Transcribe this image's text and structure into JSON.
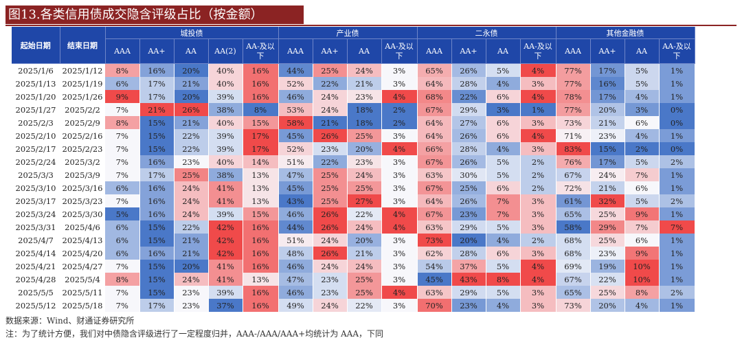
{
  "title": "图13.各类信用债成交隐含评级占比（按金额）",
  "headers": {
    "start_date": "起始日期",
    "end_date": "结束日期",
    "groups": [
      {
        "name": "城投债",
        "ratings": [
          "AAA",
          "AA+",
          "AA",
          "AA(2)",
          "AA-及以下"
        ]
      },
      {
        "name": "产业债",
        "ratings": [
          "AAA",
          "AA+",
          "AA",
          "AA-及以下"
        ]
      },
      {
        "name": "二永债",
        "ratings": [
          "AAA",
          "AA+",
          "AA",
          "AA-及以下"
        ]
      },
      {
        "name": "其他金融债",
        "ratings": [
          "AAA",
          "AA+",
          "AA",
          "AA-及以下"
        ]
      }
    ]
  },
  "rows": [
    {
      "start": "2025/1/6",
      "end": "2025/1/12",
      "values": [
        "8%",
        "16%",
        "20%",
        "40%",
        "16%",
        "44%",
        "25%",
        "24%",
        "3%",
        "65%",
        "26%",
        "5%",
        "4%",
        "77%",
        "17%",
        "5%",
        "1%"
      ]
    },
    {
      "start": "2025/1/13",
      "end": "2025/1/19",
      "values": [
        "6%",
        "17%",
        "21%",
        "40%",
        "16%",
        "52%",
        "22%",
        "21%",
        "3%",
        "64%",
        "28%",
        "4%",
        "3%",
        "77%",
        "16%",
        "5%",
        "1%"
      ]
    },
    {
      "start": "2025/1/20",
      "end": "2025/1/26",
      "values": [
        "9%",
        "17%",
        "20%",
        "39%",
        "16%",
        "46%",
        "24%",
        "23%",
        "4%",
        "68%",
        "22%",
        "6%",
        "4%",
        "78%",
        "17%",
        "4%",
        "1%"
      ]
    },
    {
      "start": "2025/1/27",
      "end": "2025/2/2",
      "values": [
        "7%",
        "21%",
        "26%",
        "38%",
        "8%",
        "53%",
        "24%",
        "18%",
        "2%",
        "67%",
        "29%",
        "3%",
        "1%",
        "77%",
        "20%",
        "3%",
        "0%"
      ]
    },
    {
      "start": "2025/2/3",
      "end": "2025/2/9",
      "values": [
        "8%",
        "15%",
        "21%",
        "40%",
        "15%",
        "58%",
        "21%",
        "18%",
        "2%",
        "64%",
        "27%",
        "6%",
        "3%",
        "73%",
        "21%",
        "6%",
        "0%"
      ]
    },
    {
      "start": "2025/2/10",
      "end": "2025/2/16",
      "values": [
        "7%",
        "15%",
        "22%",
        "39%",
        "17%",
        "45%",
        "26%",
        "25%",
        "3%",
        "64%",
        "26%",
        "6%",
        "4%",
        "71%",
        "23%",
        "4%",
        "1%"
      ]
    },
    {
      "start": "2025/2/17",
      "end": "2025/2/23",
      "values": [
        "7%",
        "15%",
        "22%",
        "39%",
        "17%",
        "52%",
        "23%",
        "20%",
        "4%",
        "66%",
        "28%",
        "4%",
        "3%",
        "83%",
        "15%",
        "2%",
        "0%"
      ]
    },
    {
      "start": "2025/2/24",
      "end": "2025/3/2",
      "values": [
        "7%",
        "16%",
        "23%",
        "40%",
        "14%",
        "51%",
        "22%",
        "23%",
        "3%",
        "67%",
        "26%",
        "5%",
        "2%",
        "76%",
        "17%",
        "5%",
        "2%"
      ]
    },
    {
      "start": "2025/3/3",
      "end": "2025/3/9",
      "values": [
        "7%",
        "17%",
        "25%",
        "38%",
        "13%",
        "47%",
        "25%",
        "24%",
        "3%",
        "63%",
        "30%",
        "5%",
        "2%",
        "67%",
        "24%",
        "7%",
        "1%"
      ]
    },
    {
      "start": "2025/3/10",
      "end": "2025/3/16",
      "values": [
        "6%",
        "16%",
        "24%",
        "41%",
        "13%",
        "45%",
        "25%",
        "25%",
        "3%",
        "67%",
        "25%",
        "6%",
        "2%",
        "72%",
        "21%",
        "6%",
        "1%"
      ]
    },
    {
      "start": "2025/3/17",
      "end": "2025/3/23",
      "values": [
        "7%",
        "16%",
        "24%",
        "41%",
        "13%",
        "43%",
        "25%",
        "27%",
        "3%",
        "64%",
        "26%",
        "7%",
        "3%",
        "61%",
        "32%",
        "5%",
        "2%"
      ]
    },
    {
      "start": "2025/3/24",
      "end": "2025/3/30",
      "values": [
        "5%",
        "16%",
        "24%",
        "39%",
        "15%",
        "46%",
        "26%",
        "22%",
        "4%",
        "67%",
        "23%",
        "7%",
        "3%",
        "65%",
        "25%",
        "9%",
        "1%"
      ]
    },
    {
      "start": "2025/3/31",
      "end": "2025/4/6",
      "values": [
        "6%",
        "15%",
        "22%",
        "42%",
        "16%",
        "44%",
        "26%",
        "24%",
        "4%",
        "63%",
        "29%",
        "5%",
        "3%",
        "58%",
        "29%",
        "7%",
        "7%"
      ]
    },
    {
      "start": "2025/4/7",
      "end": "2025/4/13",
      "values": [
        "6%",
        "15%",
        "21%",
        "42%",
        "16%",
        "51%",
        "24%",
        "20%",
        "3%",
        "73%",
        "20%",
        "4%",
        "2%",
        "68%",
        "25%",
        "6%",
        "1%"
      ]
    },
    {
      "start": "2025/4/14",
      "end": "2025/4/20",
      "values": [
        "6%",
        "16%",
        "21%",
        "42%",
        "16%",
        "48%",
        "26%",
        "21%",
        "3%",
        "62%",
        "28%",
        "6%",
        "3%",
        "68%",
        "23%",
        "9%",
        "1%"
      ]
    },
    {
      "start": "2025/4/21",
      "end": "2025/4/27",
      "values": [
        "7%",
        "15%",
        "20%",
        "41%",
        "16%",
        "46%",
        "24%",
        "24%",
        "3%",
        "54%",
        "37%",
        "5%",
        "4%",
        "69%",
        "19%",
        "10%",
        "1%"
      ]
    },
    {
      "start": "2025/4/28",
      "end": "2025/5/4",
      "values": [
        "8%",
        "15%",
        "24%",
        "41%",
        "13%",
        "47%",
        "23%",
        "25%",
        "3%",
        "45%",
        "43%",
        "8%",
        "4%",
        "67%",
        "22%",
        "10%",
        "1%"
      ]
    },
    {
      "start": "2025/5/5",
      "end": "2025/5/11",
      "values": [
        "7%",
        "15%",
        "23%",
        "39%",
        "16%",
        "46%",
        "23%",
        "25%",
        "4%",
        "63%",
        "29%",
        "5%",
        "3%",
        "65%",
        "25%",
        "8%",
        "2%"
      ]
    },
    {
      "start": "2025/5/12",
      "end": "2025/5/18",
      "values": [
        "7%",
        "17%",
        "23%",
        "37%",
        "16%",
        "49%",
        "24%",
        "22%",
        "3%",
        "70%",
        "23%",
        "4%",
        "3%",
        "73%",
        "20%",
        "4%",
        "1%"
      ]
    }
  ],
  "source": "数据来源：Wind、财通证券研究所",
  "note": "注：为了统计方便，我们对中债隐含评级进行了一定程度归并，AAA-/AAA/AAA+均统计为 AAA，下同",
  "colors": {
    "title_bg": "#8b2323",
    "header_bg": "#1f47a8",
    "high": "#f04a4a",
    "mid": "#f7f7fb",
    "low": "#4a78c8"
  }
}
